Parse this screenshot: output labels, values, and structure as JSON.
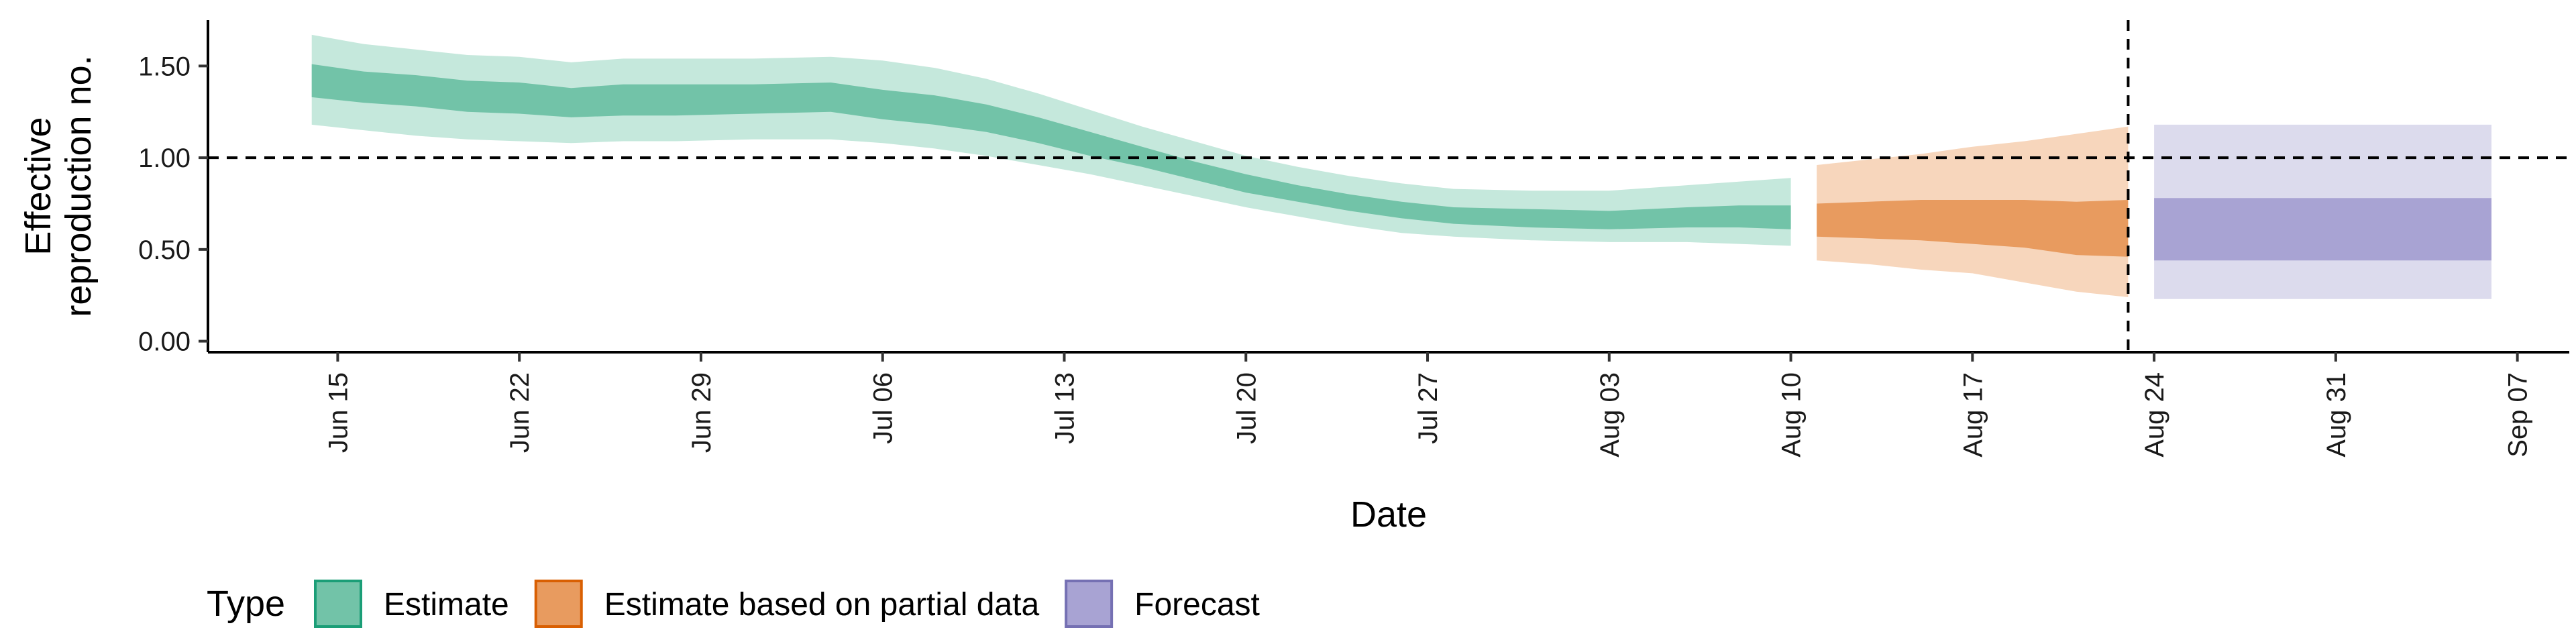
{
  "chart_data": {
    "type": "area",
    "xlabel": "Date",
    "ylabel_lines": [
      "Effective",
      "reproduction no."
    ],
    "xlim": [
      "2020-06-10",
      "2020-09-09"
    ],
    "ylim": [
      -0.06,
      1.75
    ],
    "y_ticks": [
      0.0,
      0.5,
      1.0,
      1.5
    ],
    "y_tick_labels": [
      "0.00",
      "0.50",
      "1.00",
      "1.50"
    ],
    "x_ticks": [
      "2020-06-15",
      "2020-06-22",
      "2020-06-29",
      "2020-07-06",
      "2020-07-13",
      "2020-07-20",
      "2020-07-27",
      "2020-08-03",
      "2020-08-10",
      "2020-08-17",
      "2020-08-24",
      "2020-08-31",
      "2020-09-07"
    ],
    "x_tick_labels": [
      "Jun 15",
      "Jun 22",
      "Jun 29",
      "Jul 06",
      "Jul 13",
      "Jul 20",
      "Jul 27",
      "Aug 03",
      "Aug 10",
      "Aug 17",
      "Aug 24",
      "Aug 31",
      "Sep 07"
    ],
    "reference_lines": {
      "horizontal_y": 1.0,
      "vertical_x": "2020-08-23"
    },
    "grid": false,
    "legend": {
      "title": "Type",
      "placement": "bottom-left",
      "entries": [
        {
          "label": "Estimate",
          "fill": "#72c3a8",
          "stroke": "#1b9e77"
        },
        {
          "label": "Estimate based on partial data",
          "fill": "#e89b5f",
          "stroke": "#d95f02"
        },
        {
          "label": "Forecast",
          "fill": "#a8a3d3",
          "stroke": "#7570b3"
        }
      ]
    },
    "series": [
      {
        "name": "Estimate",
        "color": "#1b9e77",
        "inner_color": "#72c3a8",
        "outer_color": "#c5e8dc",
        "points": [
          {
            "x": "2020-06-14",
            "lo90": 1.18,
            "lo50": 1.33,
            "hi50": 1.51,
            "hi90": 1.67
          },
          {
            "x": "2020-06-16",
            "lo90": 1.15,
            "lo50": 1.3,
            "hi50": 1.47,
            "hi90": 1.62
          },
          {
            "x": "2020-06-18",
            "lo90": 1.12,
            "lo50": 1.28,
            "hi50": 1.45,
            "hi90": 1.59
          },
          {
            "x": "2020-06-20",
            "lo90": 1.1,
            "lo50": 1.25,
            "hi50": 1.42,
            "hi90": 1.56
          },
          {
            "x": "2020-06-22",
            "lo90": 1.09,
            "lo50": 1.24,
            "hi50": 1.41,
            "hi90": 1.55
          },
          {
            "x": "2020-06-24",
            "lo90": 1.08,
            "lo50": 1.22,
            "hi50": 1.38,
            "hi90": 1.52
          },
          {
            "x": "2020-06-26",
            "lo90": 1.09,
            "lo50": 1.23,
            "hi50": 1.4,
            "hi90": 1.54
          },
          {
            "x": "2020-06-28",
            "lo90": 1.09,
            "lo50": 1.23,
            "hi50": 1.4,
            "hi90": 1.54
          },
          {
            "x": "2020-07-01",
            "lo90": 1.1,
            "lo50": 1.24,
            "hi50": 1.4,
            "hi90": 1.54
          },
          {
            "x": "2020-07-04",
            "lo90": 1.1,
            "lo50": 1.25,
            "hi50": 1.41,
            "hi90": 1.55
          },
          {
            "x": "2020-07-06",
            "lo90": 1.08,
            "lo50": 1.21,
            "hi50": 1.37,
            "hi90": 1.53
          },
          {
            "x": "2020-07-08",
            "lo90": 1.05,
            "lo50": 1.18,
            "hi50": 1.34,
            "hi90": 1.49
          },
          {
            "x": "2020-07-10",
            "lo90": 1.01,
            "lo50": 1.14,
            "hi50": 1.29,
            "hi90": 1.43
          },
          {
            "x": "2020-07-12",
            "lo90": 0.96,
            "lo50": 1.08,
            "hi50": 1.22,
            "hi90": 1.35
          },
          {
            "x": "2020-07-14",
            "lo90": 0.91,
            "lo50": 1.01,
            "hi50": 1.14,
            "hi90": 1.26
          },
          {
            "x": "2020-07-16",
            "lo90": 0.85,
            "lo50": 0.95,
            "hi50": 1.06,
            "hi90": 1.17
          },
          {
            "x": "2020-07-18",
            "lo90": 0.79,
            "lo50": 0.88,
            "hi50": 0.98,
            "hi90": 1.09
          },
          {
            "x": "2020-07-20",
            "lo90": 0.73,
            "lo50": 0.81,
            "hi50": 0.91,
            "hi90": 1.01
          },
          {
            "x": "2020-07-22",
            "lo90": 0.68,
            "lo50": 0.76,
            "hi50": 0.85,
            "hi90": 0.95
          },
          {
            "x": "2020-07-24",
            "lo90": 0.63,
            "lo50": 0.71,
            "hi50": 0.8,
            "hi90": 0.9
          },
          {
            "x": "2020-07-26",
            "lo90": 0.59,
            "lo50": 0.67,
            "hi50": 0.76,
            "hi90": 0.86
          },
          {
            "x": "2020-07-28",
            "lo90": 0.57,
            "lo50": 0.64,
            "hi50": 0.73,
            "hi90": 0.83
          },
          {
            "x": "2020-07-31",
            "lo90": 0.55,
            "lo50": 0.62,
            "hi50": 0.72,
            "hi90": 0.82
          },
          {
            "x": "2020-08-03",
            "lo90": 0.54,
            "lo50": 0.61,
            "hi50": 0.71,
            "hi90": 0.82
          },
          {
            "x": "2020-08-06",
            "lo90": 0.54,
            "lo50": 0.62,
            "hi50": 0.73,
            "hi90": 0.85
          },
          {
            "x": "2020-08-08",
            "lo90": 0.53,
            "lo50": 0.62,
            "hi50": 0.74,
            "hi90": 0.87
          },
          {
            "x": "2020-08-10",
            "lo90": 0.52,
            "lo50": 0.61,
            "hi50": 0.74,
            "hi90": 0.89
          }
        ]
      },
      {
        "name": "Estimate based on partial data",
        "color": "#d95f02",
        "inner_color": "#e89b5f",
        "outer_color": "#f7d6bc",
        "points": [
          {
            "x": "2020-08-11",
            "lo90": 0.44,
            "lo50": 0.57,
            "hi50": 0.75,
            "hi90": 0.96
          },
          {
            "x": "2020-08-13",
            "lo90": 0.42,
            "lo50": 0.56,
            "hi50": 0.76,
            "hi90": 0.99
          },
          {
            "x": "2020-08-15",
            "lo90": 0.39,
            "lo50": 0.55,
            "hi50": 0.77,
            "hi90": 1.02
          },
          {
            "x": "2020-08-17",
            "lo90": 0.37,
            "lo50": 0.53,
            "hi50": 0.77,
            "hi90": 1.06
          },
          {
            "x": "2020-08-19",
            "lo90": 0.32,
            "lo50": 0.51,
            "hi50": 0.77,
            "hi90": 1.09
          },
          {
            "x": "2020-08-21",
            "lo90": 0.27,
            "lo50": 0.47,
            "hi50": 0.76,
            "hi90": 1.13
          },
          {
            "x": "2020-08-23",
            "lo90": 0.24,
            "lo50": 0.46,
            "hi50": 0.77,
            "hi90": 1.17
          }
        ]
      },
      {
        "name": "Forecast",
        "color": "#7570b3",
        "inner_color": "#a8a3d3",
        "outer_color": "#dcdbed",
        "points": [
          {
            "x": "2020-08-24",
            "lo90": 0.23,
            "lo50": 0.44,
            "hi50": 0.78,
            "hi90": 1.18
          },
          {
            "x": "2020-09-06",
            "lo90": 0.23,
            "lo50": 0.44,
            "hi50": 0.78,
            "hi90": 1.18
          }
        ]
      }
    ]
  }
}
